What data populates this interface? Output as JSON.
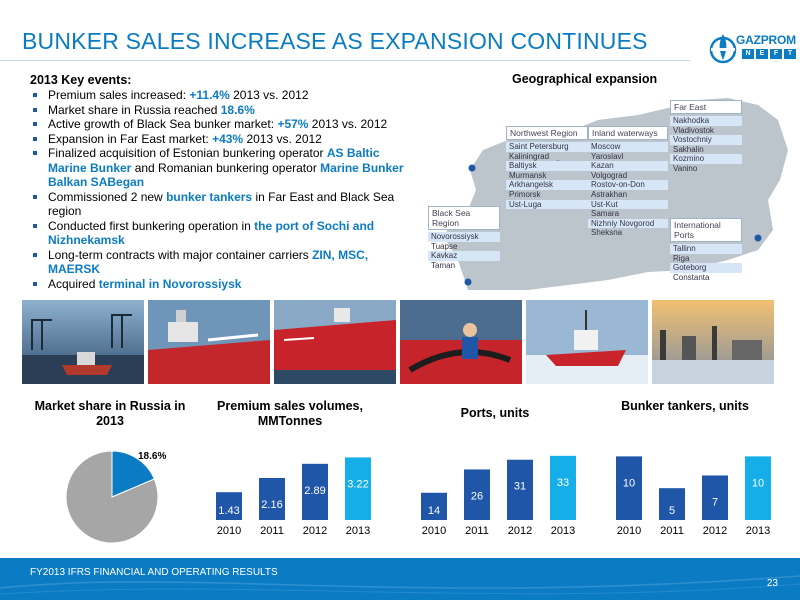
{
  "title": "BUNKER SALES INCREASE AS EXPANSION CONTINUES",
  "logo": {
    "brand": "GAZPROM",
    "sub": [
      "N",
      "E",
      "F",
      "T"
    ]
  },
  "events": {
    "heading": "2013 Key events:",
    "items": [
      {
        "parts": [
          {
            "t": "Premium sales increased: "
          },
          {
            "t": "+11.4%",
            "h": true
          },
          {
            "t": " 2013 vs. 2012"
          }
        ]
      },
      {
        "parts": [
          {
            "t": "Market share in Russia reached "
          },
          {
            "t": "18.6%",
            "h": true
          }
        ]
      },
      {
        "parts": [
          {
            "t": "Active growth of Black Sea bunker market: "
          },
          {
            "t": "+57%",
            "h": true
          },
          {
            "t": " 2013 vs. 2012"
          }
        ]
      },
      {
        "parts": [
          {
            "t": "Expansion in Far East market: "
          },
          {
            "t": "+43%",
            "h": true
          },
          {
            "t": " 2013 vs. 2012"
          }
        ]
      },
      {
        "parts": [
          {
            "t": "Finalized acquisition of Estonian bunkering operator "
          },
          {
            "t": "AS Baltic Marine Bunker",
            "h": true
          },
          {
            "t": " and Romanian bunkering operator "
          },
          {
            "t": "Marine Bunker Balkan SABegan",
            "h": true
          }
        ]
      },
      {
        "parts": [
          {
            "t": "Commissioned 2 new "
          },
          {
            "t": "bunker tankers",
            "h": true
          },
          {
            "t": " in Far East and Black Sea region"
          }
        ]
      },
      {
        "parts": [
          {
            "t": "Conducted first bunkering operation in "
          },
          {
            "t": "the port of Sochi and Nizhnekamsk",
            "h": true
          }
        ]
      },
      {
        "parts": [
          {
            "t": "Long-term contracts with major container carriers "
          },
          {
            "t": "ZIN, MSC, MAERSK",
            "h": true
          }
        ]
      },
      {
        "parts": [
          {
            "t": "Acquired "
          },
          {
            "t": "terminal in Novorossiysk",
            "h": true
          }
        ]
      }
    ]
  },
  "geo": {
    "title": "Geographical expansion",
    "regions": [
      {
        "id": "northwest",
        "name": "Northwest Region",
        "cities": [
          "Saint Petersburg",
          "Kaliningrad",
          "Baltiysk",
          "Murmansk",
          "Arkhangelsk",
          "Primorsk",
          "Ust-Luga"
        ]
      },
      {
        "id": "inland",
        "name": "Inland waterways",
        "cities": [
          "Moscow",
          "Yaroslavl",
          "Kazan",
          "Volgograd",
          "Rostov-on-Don",
          "Astrakhan",
          "Ust-Kut",
          "Samara",
          "Nizhniy Novgorod",
          "Sheksna"
        ]
      },
      {
        "id": "fareast",
        "name": "Far East",
        "cities": [
          "Nakhodka",
          "Vladivostok",
          "Vostochniy",
          "Sakhalin",
          "Kozmino",
          "Vanino"
        ]
      },
      {
        "id": "blacksea",
        "name": "Black Sea Region",
        "cities": [
          "Novorossiysk",
          "Tuapse",
          "Kavkaz",
          "Taman"
        ]
      },
      {
        "id": "intl",
        "name": "International Ports",
        "cities": [
          "Tallinn",
          "Riga",
          "Goteborg",
          "Constanta"
        ]
      }
    ],
    "colors": {
      "land": "#bcc4cc",
      "pin": "#1f56a8"
    }
  },
  "photos": [
    {
      "name": "harbor-cranes-photo"
    },
    {
      "name": "tanker-deck-photo"
    },
    {
      "name": "tanker-hull-photo"
    },
    {
      "name": "crew-hose-photo"
    },
    {
      "name": "icebreaker-photo"
    },
    {
      "name": "port-sunrise-photo"
    }
  ],
  "charts": {
    "market_share": {
      "title": "Market share in Russia in 2013",
      "label": "18.6%"
    },
    "premium": {
      "title": "Premium sales volumes, MMTonnes"
    },
    "ports": {
      "title": "Ports, units"
    },
    "tankers": {
      "title": "Bunker tankers, units"
    }
  },
  "chart_data": [
    {
      "type": "pie",
      "title": "Market share in Russia in 2013",
      "values": [
        18.6,
        81.4
      ],
      "labels": [
        "18.6%",
        ""
      ],
      "colors": [
        "#0b7cc4",
        "#a6a6a6"
      ]
    },
    {
      "type": "bar",
      "title": "Premium sales volumes, MMTonnes",
      "categories": [
        "2010",
        "2011",
        "2012",
        "2013"
      ],
      "values": [
        1.43,
        2.16,
        2.89,
        3.22
      ],
      "labels": [
        "1.43",
        "2.16",
        "2.89",
        "3.22"
      ],
      "ylim": [
        0,
        3.6
      ],
      "colors": [
        "#1f56a8",
        "#1f56a8",
        "#1f56a8",
        "#15aee8"
      ]
    },
    {
      "type": "bar",
      "title": "Ports, units",
      "categories": [
        "2010",
        "2011",
        "2012",
        "2013"
      ],
      "values": [
        14,
        26,
        31,
        33
      ],
      "labels": [
        "14",
        "26",
        "31",
        "33"
      ],
      "ylim": [
        0,
        36
      ],
      "colors": [
        "#1f56a8",
        "#1f56a8",
        "#1f56a8",
        "#15aee8"
      ]
    },
    {
      "type": "bar",
      "title": "Bunker tankers, units",
      "categories": [
        "2010",
        "2011",
        "2012",
        "2013"
      ],
      "values": [
        10,
        5,
        7,
        10
      ],
      "labels": [
        "10",
        "5",
        "7",
        "10"
      ],
      "ylim": [
        0,
        11
      ],
      "colors": [
        "#1f56a8",
        "#1f56a8",
        "#1f56a8",
        "#15aee8"
      ]
    }
  ],
  "footer": {
    "text": "FY2013 IFRS FINANCIAL AND OPERATING RESULTS",
    "page": "23",
    "color": "#0b7cc4"
  }
}
